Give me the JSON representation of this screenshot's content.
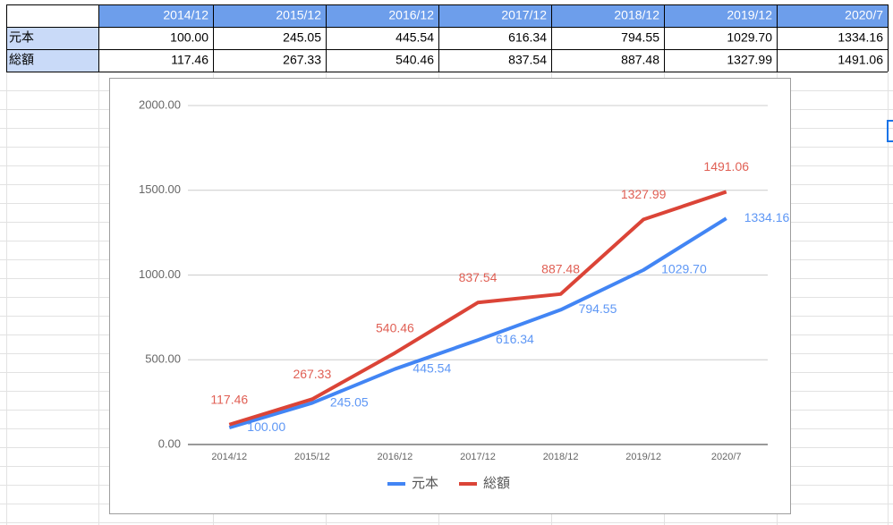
{
  "table": {
    "columns": [
      "2014/12",
      "2015/12",
      "2016/12",
      "2017/12",
      "2018/12",
      "2019/12",
      "2020/7"
    ],
    "rows": [
      {
        "label": "元本",
        "cells": [
          "100.00",
          "245.05",
          "445.54",
          "616.34",
          "794.55",
          "1029.70",
          "1334.16"
        ]
      },
      {
        "label": "総額",
        "cells": [
          "117.46",
          "267.33",
          "540.46",
          "837.54",
          "887.48",
          "1327.99",
          "1491.06"
        ]
      }
    ]
  },
  "chart_data": {
    "type": "line",
    "categories": [
      "2014/12",
      "2015/12",
      "2016/12",
      "2017/12",
      "2018/12",
      "2019/12",
      "2020/7"
    ],
    "series": [
      {
        "name": "元本",
        "color": "#4285f4",
        "values": [
          100,
          245.05,
          445.54,
          616.34,
          794.55,
          1029.7,
          1334.16
        ],
        "value_labels": [
          "100.00",
          "245.05",
          "445.54",
          "616.34",
          "794.55",
          "1029.70",
          "1334.16"
        ]
      },
      {
        "name": "総額",
        "color": "#db4437",
        "values": [
          117.46,
          267.33,
          540.46,
          837.54,
          887.48,
          1327.99,
          1491.06
        ],
        "value_labels": [
          "117.46",
          "267.33",
          "540.46",
          "837.54",
          "887.48",
          "1327.99",
          "1491.06"
        ]
      }
    ],
    "ylim": [
      0,
      2000
    ],
    "yticks": [
      {
        "value": 0,
        "label": "0.00"
      },
      {
        "value": 500,
        "label": "500.00"
      },
      {
        "value": 1000,
        "label": "1000.00"
      },
      {
        "value": 1500,
        "label": "1500.00"
      },
      {
        "value": 2000,
        "label": "2000.00"
      }
    ],
    "grid": true,
    "legend": "bottom"
  }
}
